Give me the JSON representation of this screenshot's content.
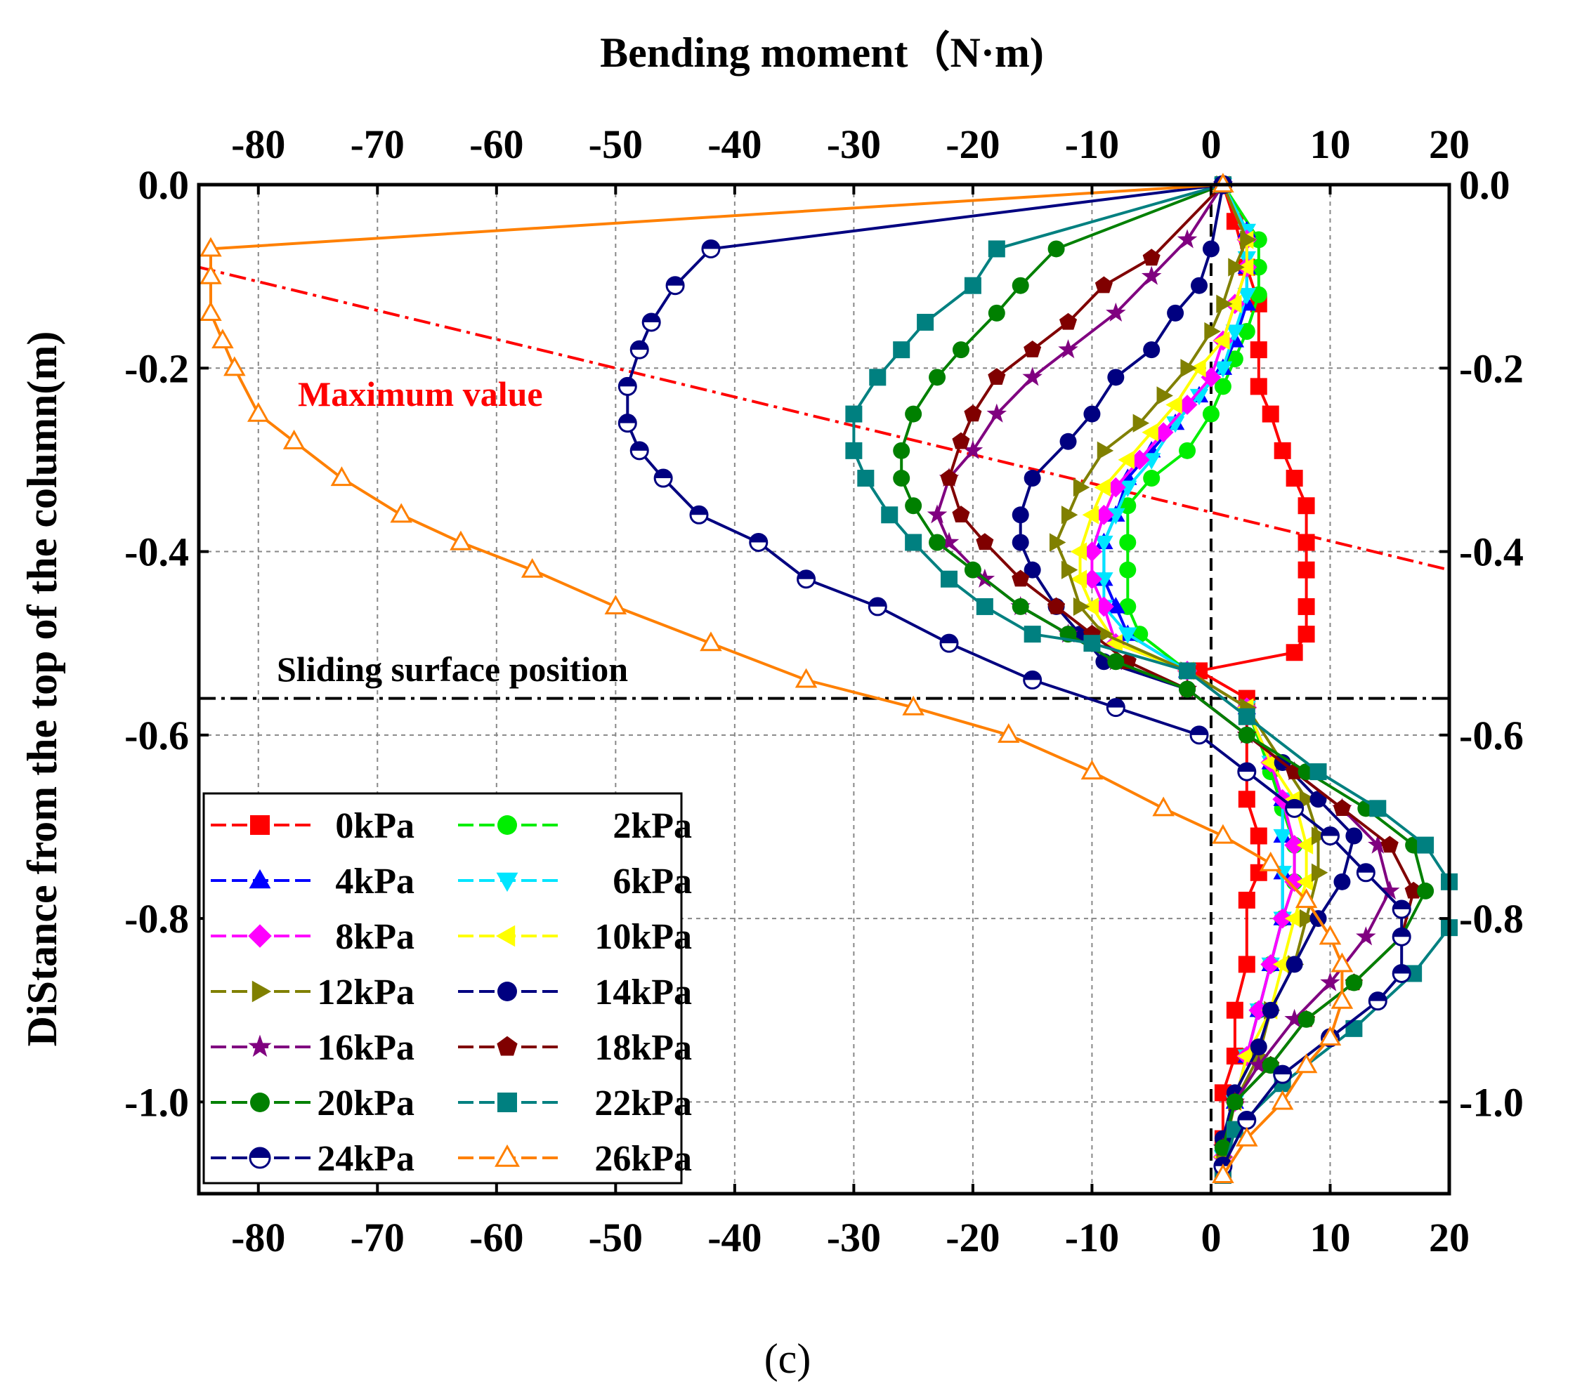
{
  "chart_data": {
    "type": "scatter",
    "title": "Bending moment（N·m)",
    "xlabel": "Bending moment（N·m)",
    "ylabel": "DiStance from the top of the column(m)",
    "xlim": [
      -85,
      20
    ],
    "ylim": [
      -1.1,
      0.0
    ],
    "xticks": [
      -80,
      -70,
      -60,
      -50,
      -40,
      -30,
      -20,
      -10,
      0,
      10,
      20
    ],
    "xtick_labels": [
      "-80",
      "-70",
      "-60",
      "-50",
      "-40",
      "-30",
      "-20",
      "-10",
      "0",
      "10",
      "20"
    ],
    "yticks": [
      0.0,
      -0.2,
      -0.4,
      -0.6,
      -0.8,
      -1.0
    ],
    "ytick_labels": [
      "0.0",
      "-0.2",
      "-0.4",
      "-0.6",
      "-0.8",
      "-1.0"
    ],
    "grid": true,
    "legend_position": "bottom-left",
    "annotations": {
      "max_label": "Maximum value",
      "sliding_label": "Sliding surface position",
      "sliding_y": -0.56,
      "max_line": [
        [
          -85,
          -0.09
        ],
        [
          20,
          -0.42
        ]
      ]
    },
    "caption": "(c)",
    "series": [
      {
        "name": "0kPa",
        "color": "#ff0000",
        "marker": "square",
        "x": [
          1,
          2,
          3,
          4,
          4,
          4,
          5,
          6,
          7,
          8,
          8,
          8,
          8,
          8,
          7,
          -1,
          3,
          3,
          4,
          4,
          3,
          3,
          2,
          2,
          1,
          1,
          1
        ],
        "y": [
          0,
          -0.04,
          -0.09,
          -0.13,
          -0.18,
          -0.22,
          -0.25,
          -0.29,
          -0.32,
          -0.35,
          -0.39,
          -0.42,
          -0.46,
          -0.49,
          -0.51,
          -0.53,
          -0.56,
          -0.67,
          -0.71,
          -0.75,
          -0.78,
          -0.85,
          -0.9,
          -0.95,
          -0.99,
          -1.04,
          -1.08
        ]
      },
      {
        "name": "2kPa",
        "color": "#00ee00",
        "marker": "circle",
        "x": [
          1,
          4,
          4,
          4,
          3,
          2,
          1,
          0,
          -2,
          -5,
          -7,
          -7,
          -7,
          -7,
          -6,
          -2,
          3,
          5,
          6,
          7,
          7,
          6,
          5,
          4,
          3,
          2,
          1
        ],
        "y": [
          0,
          -0.06,
          -0.09,
          -0.12,
          -0.16,
          -0.19,
          -0.22,
          -0.25,
          -0.29,
          -0.32,
          -0.35,
          -0.39,
          -0.42,
          -0.46,
          -0.49,
          -0.53,
          -0.57,
          -0.64,
          -0.68,
          -0.72,
          -0.76,
          -0.8,
          -0.85,
          -0.9,
          -0.95,
          -1.0,
          -1.05
        ]
      },
      {
        "name": "4kPa",
        "color": "#0000ff",
        "marker": "triangle-up",
        "x": [
          1,
          3,
          3,
          3,
          2,
          1,
          -1,
          -3,
          -5,
          -7,
          -8,
          -9,
          -9,
          -8,
          -7,
          -2,
          3,
          5,
          6,
          6,
          6,
          6,
          5,
          4,
          3,
          2,
          1
        ],
        "y": [
          0,
          -0.05,
          -0.09,
          -0.13,
          -0.17,
          -0.2,
          -0.23,
          -0.26,
          -0.29,
          -0.32,
          -0.36,
          -0.39,
          -0.43,
          -0.46,
          -0.49,
          -0.53,
          -0.57,
          -0.63,
          -0.67,
          -0.71,
          -0.75,
          -0.8,
          -0.85,
          -0.9,
          -0.95,
          -1.0,
          -1.06
        ]
      },
      {
        "name": "6kPa",
        "color": "#00e5ff",
        "marker": "triangle-down",
        "x": [
          1,
          3,
          3,
          3,
          2,
          1,
          -1,
          -3,
          -5,
          -7,
          -8,
          -9,
          -9,
          -9,
          -7,
          -2,
          3,
          5,
          6,
          6,
          6,
          6,
          5,
          4,
          3,
          2,
          1
        ],
        "y": [
          0,
          -0.05,
          -0.08,
          -0.12,
          -0.16,
          -0.2,
          -0.23,
          -0.26,
          -0.3,
          -0.33,
          -0.36,
          -0.39,
          -0.43,
          -0.46,
          -0.49,
          -0.53,
          -0.57,
          -0.63,
          -0.67,
          -0.71,
          -0.75,
          -0.8,
          -0.85,
          -0.9,
          -0.95,
          -1.0,
          -1.06
        ]
      },
      {
        "name": "8kPa",
        "color": "#ff00ff",
        "marker": "diamond",
        "x": [
          1,
          3,
          3,
          2,
          1,
          0,
          -2,
          -4,
          -6,
          -8,
          -9,
          -10,
          -10,
          -9,
          -8,
          -2,
          3,
          5,
          6,
          7,
          7,
          6,
          5,
          4,
          3,
          2,
          1
        ],
        "y": [
          0,
          -0.06,
          -0.09,
          -0.13,
          -0.17,
          -0.21,
          -0.24,
          -0.27,
          -0.3,
          -0.33,
          -0.36,
          -0.4,
          -0.43,
          -0.46,
          -0.5,
          -0.53,
          -0.57,
          -0.63,
          -0.67,
          -0.72,
          -0.76,
          -0.8,
          -0.85,
          -0.9,
          -0.95,
          -1.0,
          -1.06
        ]
      },
      {
        "name": "10kPa",
        "color": "#ffff00",
        "marker": "triangle-left",
        "x": [
          1,
          3,
          3,
          2,
          1,
          -1,
          -3,
          -5,
          -7,
          -9,
          -10,
          -11,
          -11,
          -10,
          -8,
          -2,
          3,
          5,
          7,
          8,
          8,
          7,
          6,
          5,
          3,
          2,
          1
        ],
        "y": [
          0,
          -0.06,
          -0.09,
          -0.13,
          -0.17,
          -0.2,
          -0.24,
          -0.27,
          -0.3,
          -0.33,
          -0.36,
          -0.4,
          -0.43,
          -0.46,
          -0.5,
          -0.53,
          -0.57,
          -0.63,
          -0.67,
          -0.72,
          -0.76,
          -0.8,
          -0.85,
          -0.9,
          -0.95,
          -1.0,
          -1.06
        ]
      },
      {
        "name": "12kPa",
        "color": "#808000",
        "marker": "triangle-right",
        "x": [
          1,
          3,
          2,
          1,
          0,
          -2,
          -4,
          -6,
          -9,
          -11,
          -12,
          -13,
          -12,
          -11,
          -9,
          -2,
          3,
          6,
          8,
          9,
          9,
          8,
          7,
          5,
          4,
          2,
          1
        ],
        "y": [
          0,
          -0.06,
          -0.09,
          -0.13,
          -0.16,
          -0.2,
          -0.23,
          -0.26,
          -0.29,
          -0.33,
          -0.36,
          -0.39,
          -0.42,
          -0.46,
          -0.49,
          -0.53,
          -0.57,
          -0.63,
          -0.67,
          -0.71,
          -0.75,
          -0.8,
          -0.85,
          -0.9,
          -0.95,
          -1.0,
          -1.06
        ]
      },
      {
        "name": "14kPa",
        "color": "#000080",
        "marker": "circle",
        "x": [
          1,
          0,
          -1,
          -3,
          -5,
          -8,
          -10,
          -12,
          -15,
          -16,
          -16,
          -15,
          -13,
          -11,
          -9,
          -2,
          3,
          6,
          9,
          12,
          11,
          9,
          7,
          5,
          4,
          2,
          1
        ],
        "y": [
          0,
          -0.07,
          -0.11,
          -0.14,
          -0.18,
          -0.21,
          -0.25,
          -0.28,
          -0.32,
          -0.36,
          -0.39,
          -0.42,
          -0.46,
          -0.49,
          -0.52,
          -0.55,
          -0.6,
          -0.63,
          -0.67,
          -0.71,
          -0.76,
          -0.8,
          -0.85,
          -0.9,
          -0.94,
          -0.99,
          -1.04
        ]
      },
      {
        "name": "16kPa",
        "color": "#800080",
        "marker": "star",
        "x": [
          1,
          -2,
          -5,
          -8,
          -12,
          -15,
          -18,
          -20,
          -22,
          -23,
          -22,
          -19,
          -16,
          -12,
          -8,
          -2,
          3,
          7,
          11,
          14,
          15,
          13,
          10,
          7,
          4,
          2,
          1
        ],
        "y": [
          0,
          -0.06,
          -0.1,
          -0.14,
          -0.18,
          -0.21,
          -0.25,
          -0.29,
          -0.32,
          -0.36,
          -0.39,
          -0.43,
          -0.46,
          -0.49,
          -0.52,
          -0.55,
          -0.6,
          -0.64,
          -0.68,
          -0.72,
          -0.77,
          -0.82,
          -0.87,
          -0.91,
          -0.96,
          -1.0,
          -1.05
        ]
      },
      {
        "name": "18kPa",
        "color": "#800000",
        "marker": "pentagon",
        "x": [
          1,
          -5,
          -9,
          -12,
          -15,
          -18,
          -20,
          -21,
          -22,
          -21,
          -19,
          -16,
          -13,
          -10,
          -7,
          -2,
          3,
          7,
          11,
          15,
          17,
          16,
          12,
          8,
          5,
          2,
          1
        ],
        "y": [
          0,
          -0.08,
          -0.11,
          -0.15,
          -0.18,
          -0.21,
          -0.25,
          -0.28,
          -0.32,
          -0.36,
          -0.39,
          -0.43,
          -0.46,
          -0.49,
          -0.52,
          -0.55,
          -0.6,
          -0.64,
          -0.68,
          -0.72,
          -0.77,
          -0.82,
          -0.87,
          -0.91,
          -0.96,
          -1.0,
          -1.05
        ]
      },
      {
        "name": "20kPa",
        "color": "#008000",
        "marker": "circle",
        "x": [
          1,
          -13,
          -16,
          -18,
          -21,
          -23,
          -25,
          -26,
          -26,
          -25,
          -23,
          -20,
          -16,
          -12,
          -8,
          -2,
          3,
          8,
          13,
          17,
          18,
          16,
          12,
          8,
          5,
          2,
          1
        ],
        "y": [
          0,
          -0.07,
          -0.11,
          -0.14,
          -0.18,
          -0.21,
          -0.25,
          -0.29,
          -0.32,
          -0.35,
          -0.39,
          -0.42,
          -0.46,
          -0.49,
          -0.52,
          -0.55,
          -0.6,
          -0.64,
          -0.68,
          -0.72,
          -0.77,
          -0.82,
          -0.87,
          -0.91,
          -0.96,
          -1.0,
          -1.05
        ]
      },
      {
        "name": "22kPa",
        "color": "#008080",
        "marker": "square",
        "x": [
          1,
          -18,
          -20,
          -24,
          -26,
          -28,
          -30,
          -30,
          -29,
          -27,
          -25,
          -22,
          -19,
          -15,
          -10,
          -2,
          3,
          9,
          14,
          18,
          20,
          20,
          17,
          12,
          6,
          2,
          1
        ],
        "y": [
          0,
          -0.07,
          -0.11,
          -0.15,
          -0.18,
          -0.21,
          -0.25,
          -0.29,
          -0.32,
          -0.36,
          -0.39,
          -0.43,
          -0.46,
          -0.49,
          -0.5,
          -0.53,
          -0.58,
          -0.64,
          -0.68,
          -0.72,
          -0.76,
          -0.81,
          -0.86,
          -0.92,
          -0.98,
          -1.03,
          -1.08
        ]
      },
      {
        "name": "24kPa",
        "color": "#000080",
        "marker": "half-circle",
        "x": [
          1,
          -42,
          -45,
          -47,
          -48,
          -49,
          -49,
          -48,
          -46,
          -43,
          -38,
          -34,
          -28,
          -22,
          -15,
          -8,
          -1,
          3,
          7,
          10,
          13,
          16,
          16,
          16,
          14,
          10,
          6,
          3,
          1
        ],
        "y": [
          0,
          -0.07,
          -0.11,
          -0.15,
          -0.18,
          -0.22,
          -0.26,
          -0.29,
          -0.32,
          -0.36,
          -0.39,
          -0.43,
          -0.46,
          -0.5,
          -0.54,
          -0.57,
          -0.6,
          -0.64,
          -0.68,
          -0.71,
          -0.75,
          -0.79,
          -0.82,
          -0.86,
          -0.89,
          -0.93,
          -0.97,
          -1.02,
          -1.07
        ]
      },
      {
        "name": "26kPa",
        "color": "#ff8000",
        "marker": "triangle-up-open",
        "x": [
          1,
          -84,
          -84,
          -84,
          -83,
          -82,
          -80,
          -77,
          -73,
          -68,
          -63,
          -57,
          -50,
          -42,
          -34,
          -25,
          -17,
          -10,
          -4,
          1,
          5,
          8,
          10,
          11,
          11,
          10,
          8,
          6,
          3,
          1
        ],
        "y": [
          0,
          -0.07,
          -0.1,
          -0.14,
          -0.17,
          -0.2,
          -0.25,
          -0.28,
          -0.32,
          -0.36,
          -0.39,
          -0.42,
          -0.46,
          -0.5,
          -0.54,
          -0.57,
          -0.6,
          -0.64,
          -0.68,
          -0.71,
          -0.74,
          -0.78,
          -0.82,
          -0.85,
          -0.89,
          -0.93,
          -0.96,
          -1.0,
          -1.04,
          -1.08
        ]
      }
    ]
  }
}
